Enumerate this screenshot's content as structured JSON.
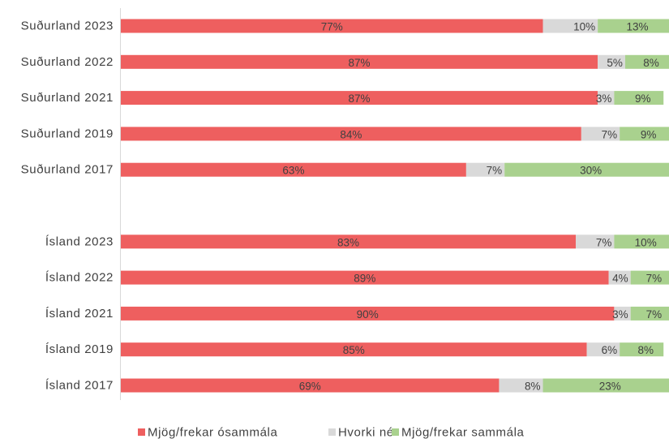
{
  "chart_data": {
    "type": "bar",
    "orientation": "horizontal",
    "stacked": true,
    "normalized": "percent",
    "categories": [
      "Suðurland 2023",
      "Suðurland 2022",
      "Suðurland 2021",
      "Suðurland 2019",
      "Suðurland 2017",
      "",
      "Ísland 2023",
      "Ísland 2022",
      "Ísland 2021",
      "Ísland 2019",
      "Ísland 2017"
    ],
    "series": [
      {
        "name": "Mjög/frekar ósammála",
        "color": "#ee5f5f",
        "values": [
          77,
          87,
          87,
          84,
          63,
          null,
          83,
          89,
          90,
          85,
          69
        ],
        "labels": [
          "77%",
          "87%",
          "87%",
          "84%",
          "63%",
          "",
          "83%",
          "89%",
          "90%",
          "85%",
          "69%"
        ]
      },
      {
        "name": "Hvorki né",
        "color": "#d9d9d9",
        "values": [
          10,
          5,
          3,
          7,
          7,
          null,
          7,
          4,
          3,
          6,
          8
        ],
        "labels": [
          "10%",
          "5%",
          "3%",
          "7%",
          "7%",
          "",
          "7%",
          "4%",
          "3%",
          "6%",
          "8%"
        ]
      },
      {
        "name": "Mjög/frekar sammála",
        "color": "#a9d18e",
        "values": [
          13,
          8,
          9,
          9,
          30,
          null,
          10,
          7,
          7,
          8,
          23
        ],
        "labels": [
          "13%",
          "8%",
          "9%",
          "9%",
          "30%",
          "",
          "10%",
          "7%",
          "7%",
          "8%",
          "23%"
        ]
      }
    ],
    "xlim": [
      0,
      100
    ],
    "legend_position": "bottom",
    "grid": false,
    "title": "",
    "xlabel": "",
    "ylabel": ""
  }
}
